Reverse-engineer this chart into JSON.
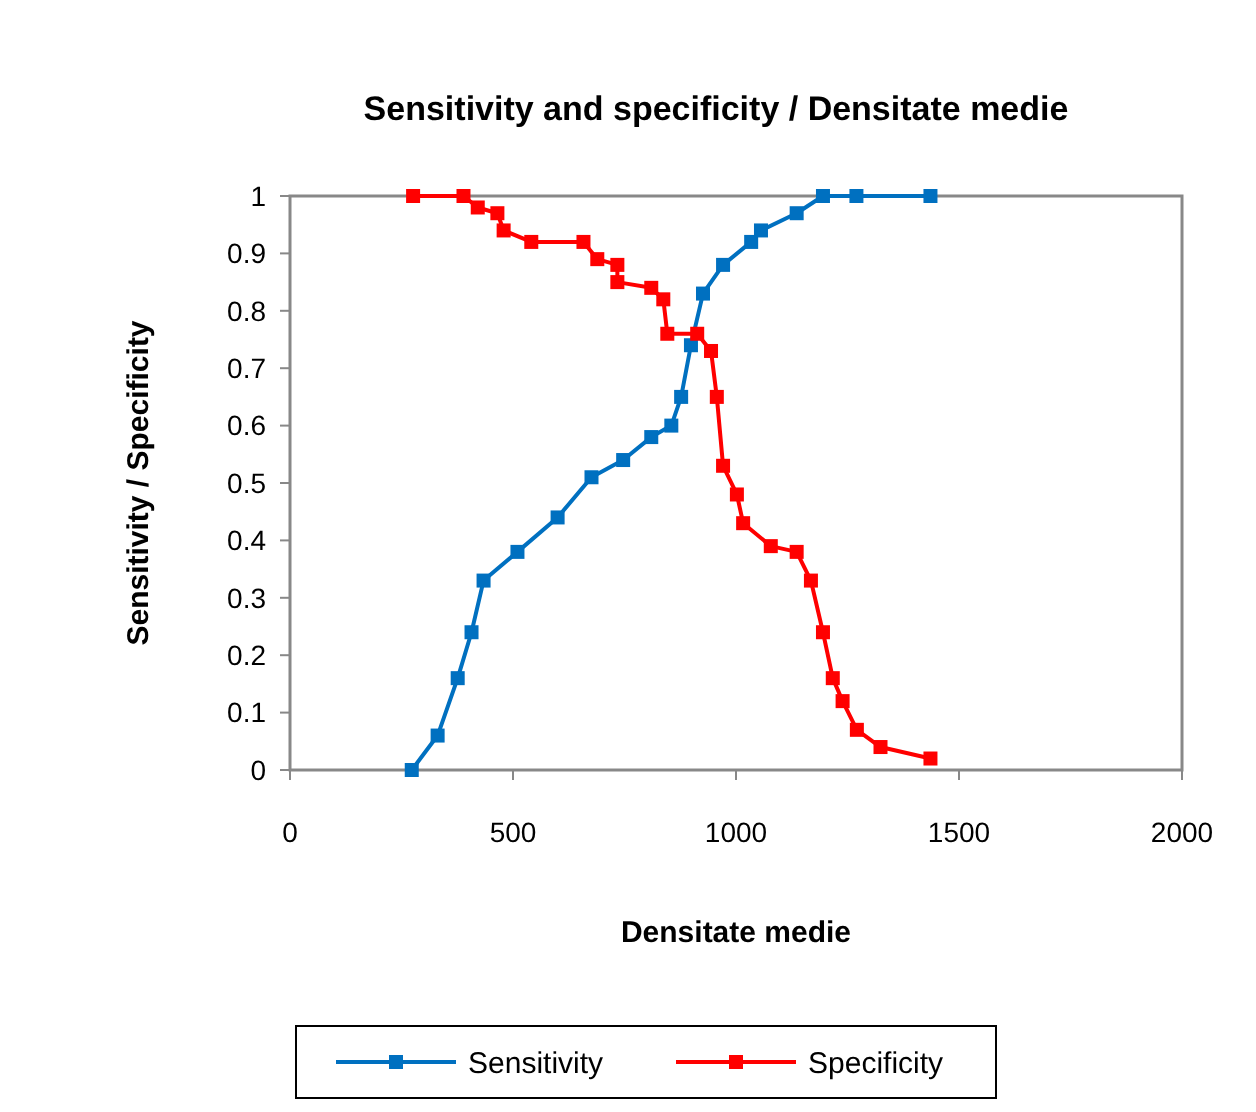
{
  "chart_data": {
    "type": "line",
    "title": "Sensitivity and specificity / Densitate medie",
    "xlabel": "Densitate medie",
    "ylabel": "Sensitivity / Specificity",
    "xlim": [
      0,
      2000
    ],
    "xticks": [
      0,
      500,
      1000,
      1500,
      2000
    ],
    "ylim": [
      0,
      1
    ],
    "yticks": [
      0,
      0.1,
      0.2,
      0.3,
      0.4,
      0.5,
      0.6,
      0.7,
      0.8,
      0.9,
      1
    ],
    "grid": false,
    "legend": "bottom",
    "marker": "square",
    "line_style": "solid",
    "series": [
      {
        "name": "Sensitivity",
        "color": "#0070c0",
        "x": [
          273,
          331,
          376,
          407,
          434,
          510,
          600,
          676,
          747,
          810,
          855,
          877,
          899,
          926,
          971,
          1034,
          1056,
          1136,
          1195,
          1270,
          1436
        ],
        "values": [
          0,
          0.06,
          0.16,
          0.24,
          0.33,
          0.38,
          0.44,
          0.51,
          0.54,
          0.58,
          0.6,
          0.65,
          0.74,
          0.83,
          0.88,
          0.92,
          0.94,
          0.97,
          1,
          1,
          1
        ]
      },
      {
        "name": "Specificity",
        "color": "#ff0000",
        "x": [
          276,
          389,
          421,
          465,
          479,
          541,
          658,
          689,
          734,
          734,
          810,
          837,
          846,
          913,
          944,
          957,
          971,
          1002,
          1016,
          1078,
          1136,
          1168,
          1195,
          1217,
          1239,
          1271,
          1324,
          1436
        ],
        "values": [
          1,
          1,
          0.98,
          0.97,
          0.94,
          0.92,
          0.92,
          0.89,
          0.88,
          0.85,
          0.84,
          0.82,
          0.76,
          0.76,
          0.73,
          0.65,
          0.53,
          0.48,
          0.43,
          0.39,
          0.38,
          0.33,
          0.24,
          0.16,
          0.12,
          0.07,
          0.04,
          0.02
        ]
      }
    ]
  }
}
